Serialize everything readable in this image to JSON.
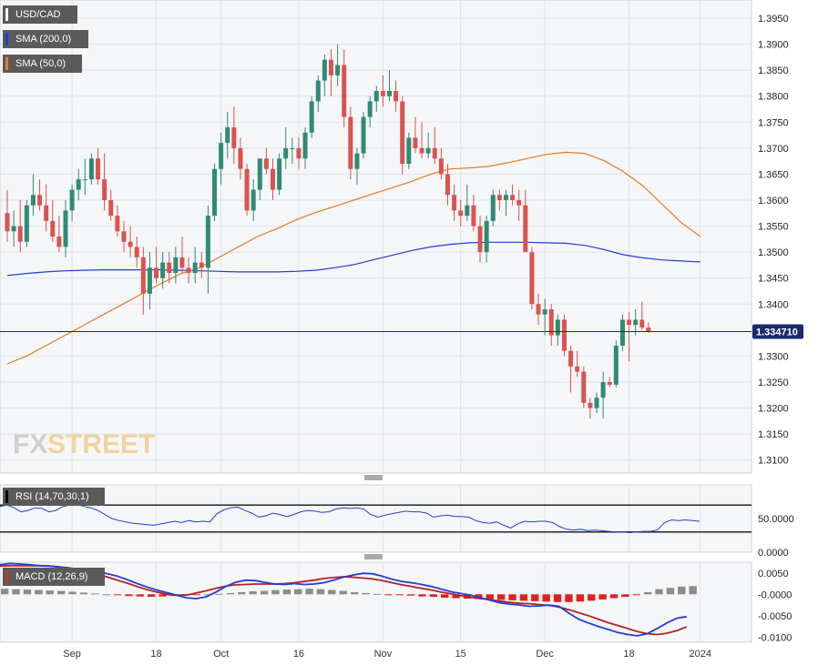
{
  "legends": {
    "main": [
      {
        "label": "USD/CAD",
        "color": "#5a5a5a"
      },
      {
        "label": "SMA (200,0)",
        "color": "#1f3fd6"
      },
      {
        "label": "SMA (50,0)",
        "color": "#e8782a"
      }
    ],
    "rsi": {
      "label": "RSI (14,70,30,1)",
      "color": "#1f3fd6"
    },
    "macd": {
      "label": "MACD (12,26,9)",
      "color": "#c0392b"
    }
  },
  "watermark": {
    "part1": "FX",
    "part2": "STREET"
  },
  "colors": {
    "up": "#2e8b74",
    "down": "#d9534f",
    "sma200": "#1f3fd6",
    "sma50": "#e8782a",
    "rsi": "#1f3fd6",
    "macd": "#1f3fd6",
    "signal": "#b22222",
    "hist_pos": "#8c8c8c",
    "hist_neg": "#e02020",
    "price_line": "#1a2a6c"
  },
  "chart_data": [
    {
      "type": "candlestick",
      "title": "USD/CAD",
      "ylim": [
        1.3075,
        1.3985
      ],
      "yticks": [
        "1.3950",
        "1.3900",
        "1.3850",
        "1.3800",
        "1.3750",
        "1.3700",
        "1.3650",
        "1.3600",
        "1.3550",
        "1.3500",
        "1.3450",
        "1.3400",
        "1.3300",
        "1.3250",
        "1.3200",
        "1.3150",
        "1.3100"
      ],
      "xlabels": [
        {
          "label": "Sep",
          "index": 10
        },
        {
          "label": "18",
          "index": 23
        },
        {
          "label": "Oct",
          "index": 33
        },
        {
          "label": "16",
          "index": 45
        },
        {
          "label": "Nov",
          "index": 58
        },
        {
          "label": "15",
          "index": 70
        },
        {
          "label": "Dec",
          "index": 83
        },
        {
          "label": "18",
          "index": 96
        },
        {
          "label": "2024",
          "index": 107
        }
      ],
      "last_price": "1.334710",
      "last_value": 1.33471,
      "candles": [
        [
          1.3575,
          1.362,
          1.352,
          1.354
        ],
        [
          1.354,
          1.358,
          1.351,
          1.355
        ],
        [
          1.355,
          1.36,
          1.35,
          1.352
        ],
        [
          1.352,
          1.36,
          1.351,
          1.359
        ],
        [
          1.359,
          1.365,
          1.357,
          1.361
        ],
        [
          1.361,
          1.364,
          1.358,
          1.359
        ],
        [
          1.359,
          1.363,
          1.354,
          1.356
        ],
        [
          1.356,
          1.36,
          1.352,
          1.353
        ],
        [
          1.353,
          1.357,
          1.35,
          1.351
        ],
        [
          1.351,
          1.36,
          1.349,
          1.358
        ],
        [
          1.358,
          1.363,
          1.356,
          1.362
        ],
        [
          1.362,
          1.366,
          1.36,
          1.364
        ],
        [
          1.364,
          1.368,
          1.361,
          1.364
        ],
        [
          1.364,
          1.369,
          1.363,
          1.368
        ],
        [
          1.368,
          1.37,
          1.363,
          1.364
        ],
        [
          1.364,
          1.369,
          1.358,
          1.36
        ],
        [
          1.36,
          1.362,
          1.356,
          1.357
        ],
        [
          1.357,
          1.359,
          1.353,
          1.354
        ],
        [
          1.354,
          1.356,
          1.35,
          1.352
        ],
        [
          1.352,
          1.355,
          1.349,
          1.351
        ],
        [
          1.351,
          1.353,
          1.347,
          1.349
        ],
        [
          1.349,
          1.351,
          1.338,
          1.342
        ],
        [
          1.342,
          1.35,
          1.339,
          1.347
        ],
        [
          1.347,
          1.351,
          1.344,
          1.345
        ],
        [
          1.345,
          1.35,
          1.343,
          1.348
        ],
        [
          1.348,
          1.35,
          1.344,
          1.346
        ],
        [
          1.346,
          1.351,
          1.344,
          1.349
        ],
        [
          1.349,
          1.353,
          1.346,
          1.347
        ],
        [
          1.347,
          1.349,
          1.344,
          1.346
        ],
        [
          1.346,
          1.351,
          1.344,
          1.348
        ],
        [
          1.348,
          1.35,
          1.345,
          1.347
        ],
        [
          1.347,
          1.359,
          1.342,
          1.357
        ],
        [
          1.357,
          1.367,
          1.356,
          1.366
        ],
        [
          1.366,
          1.373,
          1.363,
          1.371
        ],
        [
          1.371,
          1.377,
          1.368,
          1.374
        ],
        [
          1.374,
          1.378,
          1.367,
          1.37
        ],
        [
          1.37,
          1.372,
          1.364,
          1.366
        ],
        [
          1.366,
          1.367,
          1.357,
          1.358
        ],
        [
          1.358,
          1.364,
          1.356,
          1.362
        ],
        [
          1.362,
          1.368,
          1.36,
          1.368
        ],
        [
          1.368,
          1.37,
          1.365,
          1.366
        ],
        [
          1.366,
          1.368,
          1.36,
          1.362
        ],
        [
          1.362,
          1.369,
          1.361,
          1.368
        ],
        [
          1.368,
          1.374,
          1.366,
          1.37
        ],
        [
          1.37,
          1.372,
          1.367,
          1.37
        ],
        [
          1.37,
          1.372,
          1.366,
          1.368
        ],
        [
          1.368,
          1.374,
          1.366,
          1.373
        ],
        [
          1.373,
          1.38,
          1.372,
          1.379
        ],
        [
          1.379,
          1.384,
          1.377,
          1.383
        ],
        [
          1.383,
          1.388,
          1.38,
          1.387
        ],
        [
          1.387,
          1.389,
          1.38,
          1.384
        ],
        [
          1.384,
          1.39,
          1.382,
          1.386
        ],
        [
          1.386,
          1.389,
          1.374,
          1.376
        ],
        [
          1.376,
          1.378,
          1.364,
          1.366
        ],
        [
          1.366,
          1.37,
          1.363,
          1.369
        ],
        [
          1.369,
          1.377,
          1.368,
          1.376
        ],
        [
          1.376,
          1.38,
          1.374,
          1.379
        ],
        [
          1.379,
          1.382,
          1.377,
          1.381
        ],
        [
          1.381,
          1.384,
          1.378,
          1.38
        ],
        [
          1.38,
          1.385,
          1.379,
          1.381
        ],
        [
          1.381,
          1.383,
          1.377,
          1.379
        ],
        [
          1.379,
          1.38,
          1.365,
          1.367
        ],
        [
          1.367,
          1.373,
          1.366,
          1.372
        ],
        [
          1.372,
          1.376,
          1.369,
          1.37
        ],
        [
          1.37,
          1.375,
          1.368,
          1.369
        ],
        [
          1.369,
          1.373,
          1.368,
          1.37
        ],
        [
          1.37,
          1.374,
          1.367,
          1.368
        ],
        [
          1.368,
          1.37,
          1.364,
          1.365
        ],
        [
          1.365,
          1.367,
          1.359,
          1.361
        ],
        [
          1.361,
          1.363,
          1.356,
          1.358
        ],
        [
          1.358,
          1.36,
          1.355,
          1.357
        ],
        [
          1.357,
          1.363,
          1.356,
          1.359
        ],
        [
          1.359,
          1.361,
          1.354,
          1.355
        ],
        [
          1.355,
          1.357,
          1.348,
          1.35
        ],
        [
          1.35,
          1.357,
          1.348,
          1.356
        ],
        [
          1.356,
          1.362,
          1.355,
          1.361
        ],
        [
          1.361,
          1.362,
          1.358,
          1.36
        ],
        [
          1.36,
          1.362,
          1.357,
          1.361
        ],
        [
          1.361,
          1.363,
          1.359,
          1.36
        ],
        [
          1.36,
          1.362,
          1.356,
          1.359
        ],
        [
          1.359,
          1.362,
          1.35,
          1.35
        ],
        [
          1.35,
          1.351,
          1.339,
          1.34
        ],
        [
          1.34,
          1.342,
          1.336,
          1.338
        ],
        [
          1.338,
          1.341,
          1.334,
          1.339
        ],
        [
          1.339,
          1.34,
          1.332,
          1.334
        ],
        [
          1.334,
          1.338,
          1.332,
          1.337
        ],
        [
          1.337,
          1.338,
          1.33,
          1.331
        ],
        [
          1.331,
          1.332,
          1.323,
          1.328
        ],
        [
          1.328,
          1.331,
          1.326,
          1.327
        ],
        [
          1.327,
          1.328,
          1.32,
          1.321
        ],
        [
          1.321,
          1.322,
          1.318,
          1.32
        ],
        [
          1.32,
          1.323,
          1.319,
          1.322
        ],
        [
          1.322,
          1.327,
          1.318,
          1.325
        ],
        [
          1.325,
          1.326,
          1.324,
          1.3245
        ],
        [
          1.3245,
          1.333,
          1.324,
          1.332
        ],
        [
          1.332,
          1.338,
          1.331,
          1.337
        ],
        [
          1.337,
          1.3385,
          1.329,
          1.336
        ],
        [
          1.336,
          1.339,
          1.334,
          1.337
        ],
        [
          1.337,
          1.3405,
          1.335,
          1.3355
        ],
        [
          1.3355,
          1.3365,
          1.3345,
          1.33471
        ]
      ],
      "sma200": [
        1.3455,
        1.3459,
        1.3462,
        1.3464,
        1.3465,
        1.3466,
        1.3466,
        1.3466,
        1.3466,
        1.3465,
        1.3464,
        1.3463,
        1.3462,
        1.3462,
        1.3462,
        1.3463,
        1.3465,
        1.347,
        1.3476,
        1.3485,
        1.3494,
        1.3503,
        1.351,
        1.3515,
        1.3518,
        1.3519,
        1.3519,
        1.3519,
        1.3518,
        1.3517,
        1.3513,
        1.3505,
        1.3495,
        1.3489,
        1.3485,
        1.3483,
        1.3481
      ],
      "sma50": [
        1.3285,
        1.33,
        1.332,
        1.334,
        1.336,
        1.338,
        1.34,
        1.342,
        1.344,
        1.3458,
        1.347,
        1.349,
        1.351,
        1.353,
        1.3545,
        1.3562,
        1.3576,
        1.3588,
        1.36,
        1.3612,
        1.3624,
        1.3636,
        1.365,
        1.366,
        1.3662,
        1.3665,
        1.3672,
        1.368,
        1.3688,
        1.3692,
        1.369,
        1.3676,
        1.3655,
        1.3628,
        1.3593,
        1.3557,
        1.353
      ]
    },
    {
      "type": "line",
      "title": "RSI (14,70,30,1)",
      "ylim": [
        0,
        100
      ],
      "levels": [
        70,
        30
      ],
      "yticks": [
        "50.0000",
        "0.0000"
      ],
      "values": [
        68,
        70,
        66,
        60,
        62,
        66,
        65,
        60,
        62,
        68,
        70,
        71,
        68,
        66,
        62,
        56,
        50,
        47,
        45,
        43,
        42,
        41,
        40,
        42,
        44,
        46,
        44,
        47,
        45,
        46,
        45,
        57,
        63,
        66,
        67,
        62,
        58,
        52,
        54,
        58,
        56,
        53,
        56,
        60,
        62,
        61,
        59,
        60,
        64,
        66,
        65,
        66,
        64,
        56,
        52,
        55,
        57,
        59,
        61,
        60,
        60,
        58,
        52,
        54,
        55,
        53,
        53,
        52,
        47,
        44,
        43,
        45,
        40,
        36,
        42,
        46,
        45,
        46,
        46,
        44,
        38,
        34,
        33,
        34,
        32,
        33,
        32,
        31,
        30,
        30,
        29,
        30,
        31,
        31,
        33,
        44,
        48,
        47,
        48,
        47,
        46
      ]
    },
    {
      "type": "macd",
      "title": "MACD (12,26,9)",
      "ylim": [
        -0.0112,
        0.0075
      ],
      "yticks": [
        "0.0050",
        "-0.0000",
        "-0.0050",
        "-0.0100"
      ],
      "macd": [
        0.0069,
        0.0072,
        0.0071,
        0.0069,
        0.0067,
        0.0066,
        0.0064,
        0.0061,
        0.0058,
        0.0055,
        0.0052,
        0.0048,
        0.0042,
        0.0034,
        0.0025,
        0.0017,
        0.001,
        0.0004,
        -0.0002,
        -0.0008,
        -0.001,
        -0.0006,
        0.0005,
        0.0018,
        0.0028,
        0.0033,
        0.0032,
        0.0028,
        0.0024,
        0.0023,
        0.0025,
        0.0023,
        0.0024,
        0.0027,
        0.0033,
        0.004,
        0.0045,
        0.0049,
        0.0048,
        0.0042,
        0.0035,
        0.003,
        0.0027,
        0.0023,
        0.0018,
        0.0012,
        0.0006,
        0.0002,
        -0.0002,
        -0.0008,
        -0.0014,
        -0.002,
        -0.0023,
        -0.0025,
        -0.0028,
        -0.0027,
        -0.0025,
        -0.0028,
        -0.0044,
        -0.0058,
        -0.0067,
        -0.0075,
        -0.0082,
        -0.0089,
        -0.0094,
        -0.0097,
        -0.0092,
        -0.008,
        -0.0067,
        -0.0056,
        -0.0052
      ],
      "signal": [
        0.0066,
        0.0067,
        0.0067,
        0.0067,
        0.0067,
        0.0066,
        0.0064,
        0.0062,
        0.0058,
        0.0053,
        0.0047,
        0.004,
        0.0033,
        0.0026,
        0.0018,
        0.0011,
        0.0005,
        0.0,
        -0.0002,
        -0.0002,
        0.0003,
        0.0008,
        0.0014,
        0.0019,
        0.0022,
        0.0023,
        0.0024,
        0.0024,
        0.0024,
        0.0025,
        0.0027,
        0.003,
        0.0033,
        0.0037,
        0.0039,
        0.0041,
        0.004,
        0.0038,
        0.0036,
        0.0032,
        0.0027,
        0.0022,
        0.0018,
        0.0014,
        0.001,
        0.0005,
        0.0001,
        -0.0003,
        -0.0007,
        -0.001,
        -0.0013,
        -0.0016,
        -0.0019,
        -0.0021,
        -0.0022,
        -0.0024,
        -0.0026,
        -0.003,
        -0.0036,
        -0.0043,
        -0.005,
        -0.0058,
        -0.0066,
        -0.0073,
        -0.008,
        -0.0087,
        -0.0092,
        -0.0094,
        -0.0091,
        -0.0085,
        -0.0076
      ],
      "hist": [
        0.0013,
        0.0012,
        0.0011,
        0.001,
        0.0009,
        0.0008,
        0.0006,
        0.0004,
        0.0002,
        0.0,
        -0.0002,
        -0.0004,
        -0.0005,
        -0.0006,
        -0.0005,
        -0.0004,
        -0.0002,
        -0.0001,
        0.0,
        0.0001,
        0.0003,
        0.0005,
        0.0007,
        0.0008,
        0.001,
        0.0011,
        0.0012,
        0.0013,
        0.0012,
        0.001,
        0.0008,
        0.0005,
        0.0003,
        0.0001,
        -0.0001,
        -0.0002,
        -0.0003,
        -0.0005,
        -0.0006,
        -0.0008,
        -0.0009,
        -0.001,
        -0.0011,
        -0.0012,
        -0.0013,
        -0.0014,
        -0.0015,
        -0.0016,
        -0.0017,
        -0.0018,
        -0.0018,
        -0.0017,
        -0.0015,
        -0.0012,
        -0.0009,
        -0.0006,
        -0.0002,
        0.0005,
        0.0012,
        0.0015,
        0.0018,
        0.0019
      ]
    }
  ]
}
